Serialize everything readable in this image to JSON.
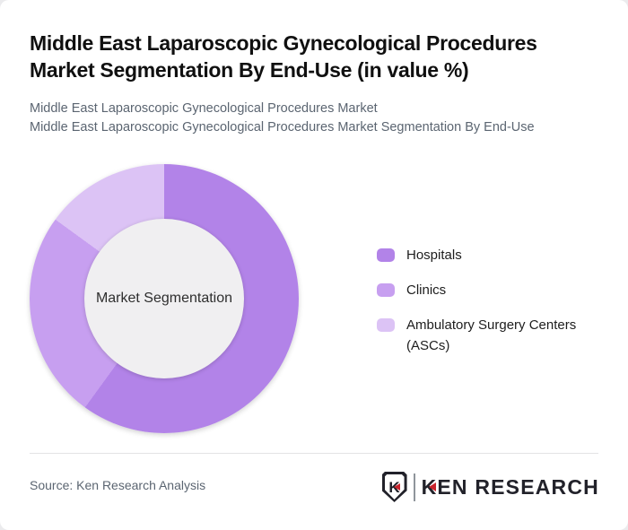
{
  "header": {
    "title": "Middle East Laparoscopic Gynecological Procedures Market Segmentation By End-Use (in value %)",
    "subtitle_line1": "Middle East Laparoscopic Gynecological Procedures Market",
    "subtitle_line2": "Middle East Laparoscopic Gynecological Procedures Market Segmentation By End-Use"
  },
  "chart_data": {
    "type": "pie",
    "subtype": "donut",
    "title": "Middle East Laparoscopic Gynecological Procedures Market Segmentation By End-Use (in value %)",
    "center_label": "Market Segmentation",
    "unit": "value %",
    "start_angle_deg": 0,
    "direction": "clockwise",
    "legend_position": "right",
    "categories": [
      "Hospitals",
      "Clinics",
      "Ambulatory Surgery Centers (ASCs)"
    ],
    "values": [
      60,
      25,
      15
    ],
    "segments": [
      {
        "label": "Hospitals",
        "value": 60,
        "color": "#b283e8"
      },
      {
        "label": "Clinics",
        "value": 25,
        "color": "#c79ff0"
      },
      {
        "label": "Ambulatory Surgery Centers (ASCs)",
        "value": 15,
        "color": "#dcc3f5"
      }
    ]
  },
  "footer": {
    "source": "Source: Ken Research Analysis",
    "logo": {
      "shield_letter": "K",
      "first_letter": "K",
      "rest": "EN RESEARCH",
      "dark_color": "#22222a",
      "red_color": "#c8232c"
    }
  }
}
